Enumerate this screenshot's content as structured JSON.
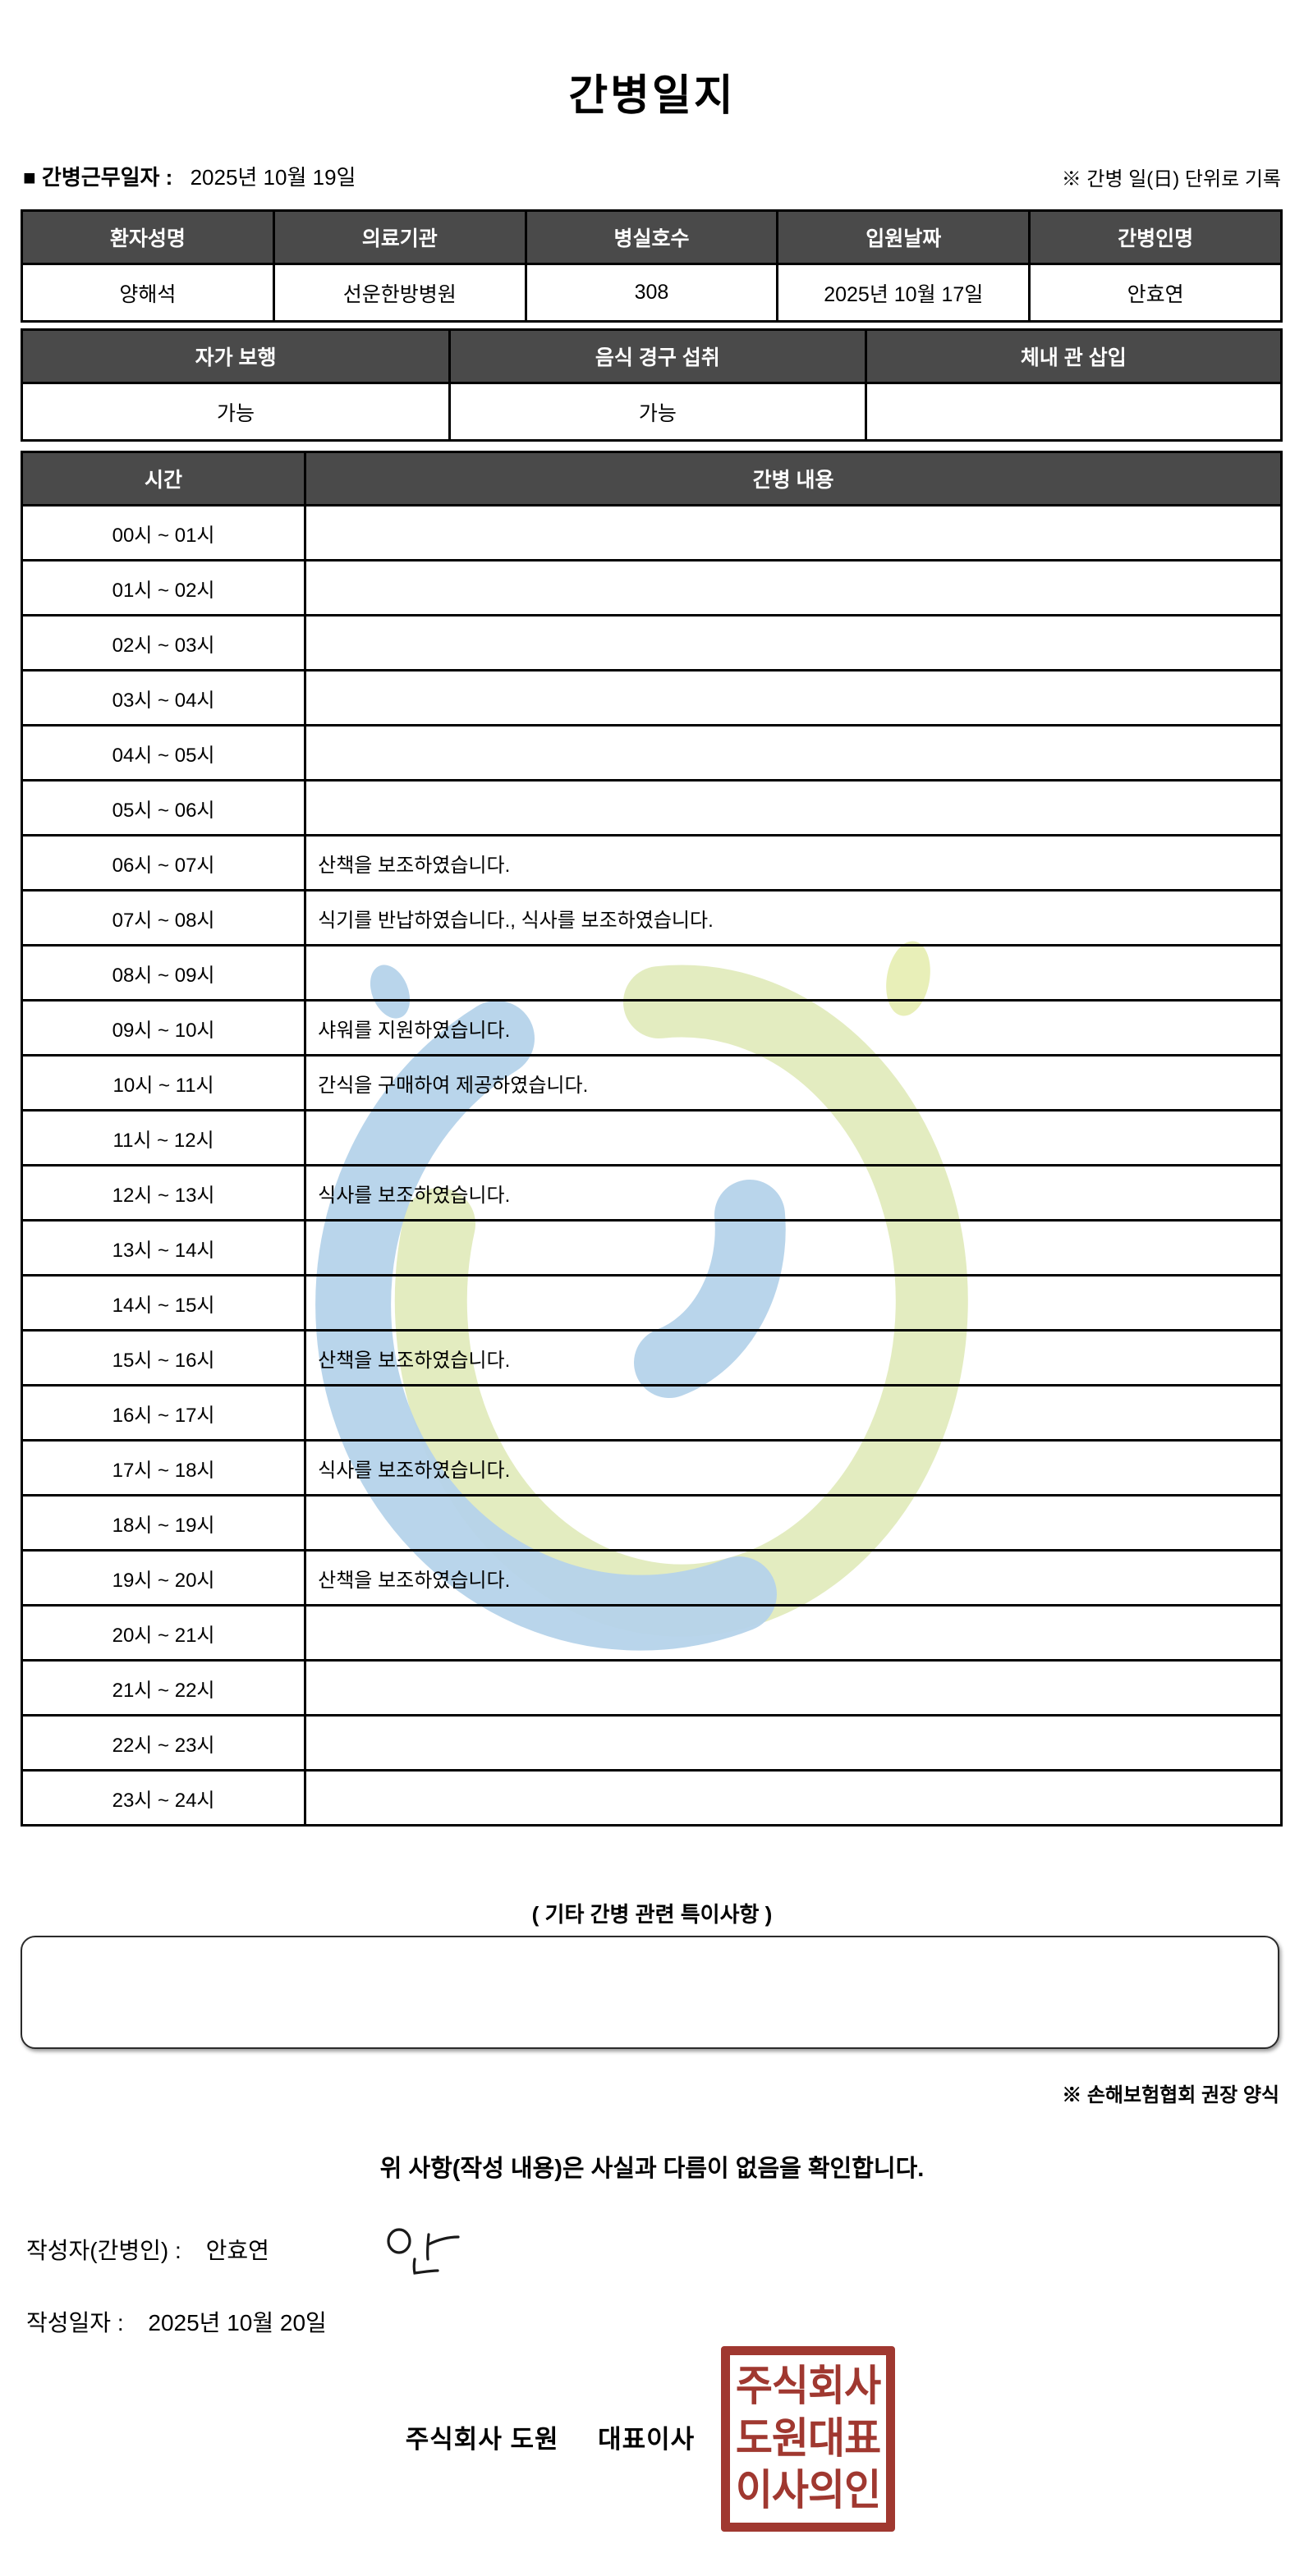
{
  "page": {
    "title": "간병일지",
    "work_date_label": "■ 간병근무일자 :",
    "work_date_value": "2025년 10월 19일",
    "unit_note": "※ 간병 일(日) 단위로 기록"
  },
  "patient_table": {
    "headers": [
      "환자성명",
      "의료기관",
      "병실호수",
      "입원날짜",
      "간병인명"
    ],
    "values": [
      "양해석",
      "선운한방병원",
      "308",
      "2025년 10월 17일",
      "안효연"
    ]
  },
  "condition_table": {
    "headers": [
      "자가 보행",
      "음식 경구 섭취",
      "체내 관 삽입"
    ],
    "values": [
      "가능",
      "가능",
      ""
    ]
  },
  "care_log": {
    "time_header": "시간",
    "content_header": "간병 내용",
    "rows": [
      {
        "time": "00시 ~ 01시",
        "content": ""
      },
      {
        "time": "01시 ~ 02시",
        "content": ""
      },
      {
        "time": "02시 ~ 03시",
        "content": ""
      },
      {
        "time": "03시 ~ 04시",
        "content": ""
      },
      {
        "time": "04시 ~ 05시",
        "content": ""
      },
      {
        "time": "05시 ~ 06시",
        "content": ""
      },
      {
        "time": "06시 ~ 07시",
        "content": "산책을 보조하였습니다."
      },
      {
        "time": "07시 ~ 08시",
        "content": "식기를 반납하였습니다., 식사를 보조하였습니다."
      },
      {
        "time": "08시 ~ 09시",
        "content": ""
      },
      {
        "time": "09시 ~ 10시",
        "content": "샤워를 지원하였습니다."
      },
      {
        "time": "10시 ~ 11시",
        "content": "간식을 구매하여 제공하였습니다."
      },
      {
        "time": "11시 ~ 12시",
        "content": ""
      },
      {
        "time": "12시 ~ 13시",
        "content": "식사를 보조하였습니다."
      },
      {
        "time": "13시 ~ 14시",
        "content": ""
      },
      {
        "time": "14시 ~ 15시",
        "content": ""
      },
      {
        "time": "15시 ~ 16시",
        "content": "산책을 보조하였습니다."
      },
      {
        "time": "16시 ~ 17시",
        "content": ""
      },
      {
        "time": "17시 ~ 18시",
        "content": "식사를 보조하였습니다."
      },
      {
        "time": "18시 ~ 19시",
        "content": ""
      },
      {
        "time": "19시 ~ 20시",
        "content": "산책을 보조하였습니다."
      },
      {
        "time": "20시 ~ 21시",
        "content": ""
      },
      {
        "time": "21시 ~ 22시",
        "content": ""
      },
      {
        "time": "22시 ~ 23시",
        "content": ""
      },
      {
        "time": "23시 ~ 24시",
        "content": ""
      }
    ]
  },
  "notes": {
    "title": "( 기타 간병 관련 특이사항 )",
    "content": "",
    "form_note": "※ 손해보험협회 권장 양식"
  },
  "footer": {
    "confirmation": "위 사항(작성 내용)은 사실과 다름이 없음을 확인합니다.",
    "writer_label": "작성자(간병인) :",
    "writer_name": "안효연",
    "write_date_label": "작성일자 :",
    "write_date_value": "2025년 10월 20일",
    "company_name": "주식회사 도원",
    "company_title": "대표이사",
    "stamp_lines": [
      "주식회사",
      "도원대표",
      "이사의인"
    ]
  },
  "colors": {
    "header_bg": "#4a4a4a",
    "stamp_red": "#a03830",
    "watermark_blue": "#b5d3ea",
    "watermark_green": "#e2ebbd"
  }
}
